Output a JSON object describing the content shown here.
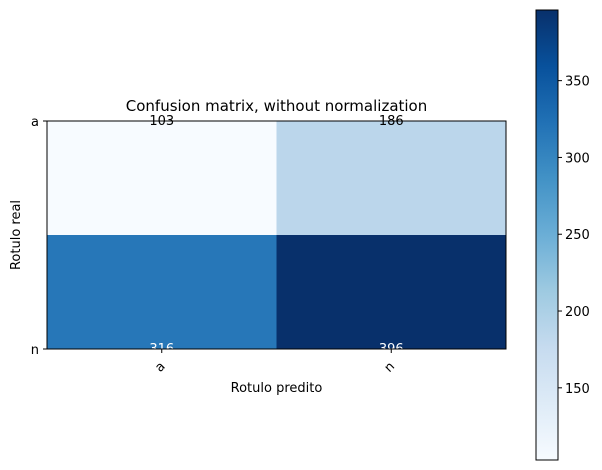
{
  "chart_data": {
    "type": "heatmap",
    "title": "Confusion matrix, without normalization",
    "xlabel": "Rotulo predito",
    "ylabel": "Rotulo real",
    "x_categories": [
      "a",
      "n"
    ],
    "y_categories": [
      "a",
      "n"
    ],
    "values": [
      [
        103,
        186
      ],
      [
        316,
        396
      ]
    ],
    "colormap": "Blues",
    "color_range": [
      103,
      396
    ],
    "colorbar_ticks": [
      150,
      200,
      250,
      300,
      350
    ]
  }
}
